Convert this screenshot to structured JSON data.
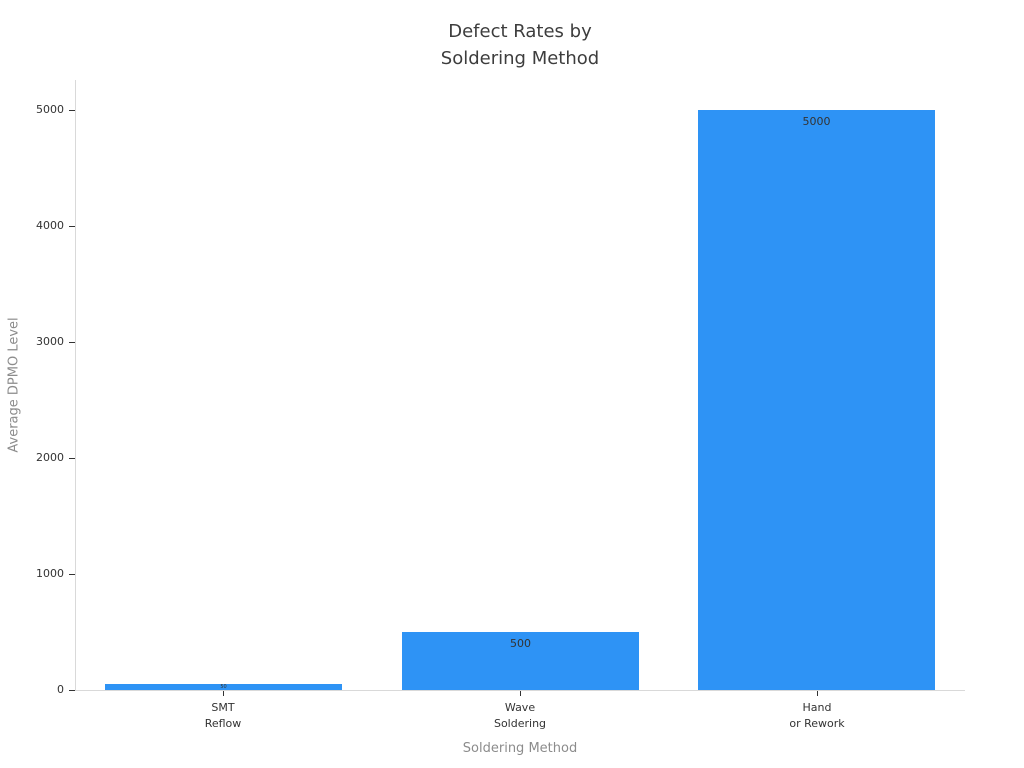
{
  "chart_data": {
    "type": "bar",
    "title": "Defect Rates by Soldering Method",
    "title_lines": [
      "Defect Rates by",
      "Soldering Method"
    ],
    "xlabel": "Soldering Method",
    "ylabel": "Average DPMO Level",
    "categories": [
      "SMT Reflow",
      "Wave Soldering",
      "Hand or Rework"
    ],
    "category_lines": [
      [
        "SMT",
        "Reflow"
      ],
      [
        "Wave",
        "Soldering"
      ],
      [
        "Hand",
        "or Rework"
      ]
    ],
    "values": [
      50,
      500,
      5000
    ],
    "bar_labels": [
      "50",
      "500",
      "5000"
    ],
    "yticks": [
      0,
      1000,
      2000,
      3000,
      4000,
      5000
    ],
    "ylim": [
      0,
      5250
    ],
    "grid": false,
    "legend": false,
    "bar_label_position": "inside-top"
  },
  "colors": {
    "bar": "#2E93F5",
    "title_text": "#3d3d3d",
    "tick_text": "#333333",
    "axis_title_text": "#8c8c8c",
    "spine": "#d9d9d9",
    "bar_label_text": "#333333",
    "background": "#ffffff"
  }
}
